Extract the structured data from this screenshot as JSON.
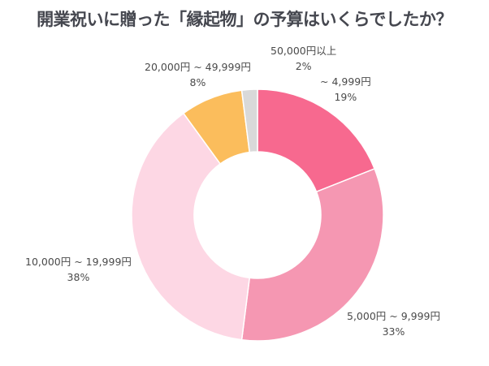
{
  "chart_data": {
    "type": "pie",
    "style": "donut",
    "title": "開業祝いに贈った「縁起物」の予算はいくらでしたか？",
    "categories": [
      "~ 4,999円",
      "5,000円 ~ 9,999円",
      "10,000円 ~ 19,999円",
      "20,000円 ~ 49,999円",
      "50,000円以上"
    ],
    "values": [
      19,
      33,
      38,
      8,
      2
    ],
    "value_labels": [
      "19%",
      "33%",
      "38%",
      "8%",
      "2%"
    ],
    "colors": [
      "#f7698f",
      "#f597b2",
      "#fdd7e4",
      "#fbbd5c",
      "#d9d9d9"
    ],
    "start": "12 o'clock",
    "direction": "clockwise"
  }
}
